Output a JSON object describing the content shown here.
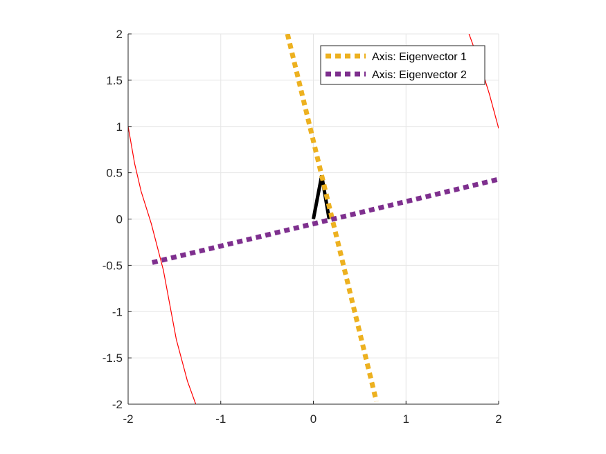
{
  "chart_data": {
    "type": "line",
    "title": "",
    "xlabel": "",
    "ylabel": "",
    "xlim": [
      -2,
      2
    ],
    "ylim": [
      -2,
      2
    ],
    "grid": true,
    "legend_position": "top-right",
    "xticks": [
      -2,
      -1,
      0,
      1,
      2
    ],
    "yticks": [
      -2,
      -1.5,
      -1,
      -0.5,
      0,
      0.5,
      1,
      1.5,
      2
    ],
    "xtick_labels": [
      "-2",
      "-1",
      "0",
      "1",
      "2"
    ],
    "ytick_labels": [
      "-2",
      "-1.5",
      "-1",
      "-0.5",
      "0",
      "0.5",
      "1",
      "1.5",
      "2"
    ],
    "series": [
      {
        "name": "Axis: Eigenvector 1",
        "color": "#EDB120",
        "style": "dotted",
        "x": [
          -0.28,
          0.68
        ],
        "y": [
          2.0,
          -1.97
        ]
      },
      {
        "name": "Axis: Eigenvector 2",
        "color": "#7E2F8E",
        "style": "dotted",
        "x": [
          -1.74,
          2.0
        ],
        "y": [
          -0.47,
          0.43
        ]
      }
    ],
    "extra_lines": [
      {
        "color": "#000000",
        "style": "solid",
        "x": [
          0.0,
          0.09,
          0.17
        ],
        "y": [
          0.0,
          0.47,
          0.0
        ]
      },
      {
        "color": "#FF0000",
        "style": "solid",
        "x": [
          -2.0,
          -1.93,
          -1.86,
          -1.75,
          -1.62,
          -1.48,
          -1.36,
          -1.27
        ],
        "y": [
          1.0,
          0.6,
          0.3,
          -0.05,
          -0.55,
          -1.3,
          -1.75,
          -2.0
        ]
      },
      {
        "color": "#FF0000",
        "style": "solid",
        "x": [
          1.68,
          1.8,
          1.9,
          2.0
        ],
        "y": [
          2.0,
          1.67,
          1.35,
          0.98
        ]
      }
    ]
  }
}
